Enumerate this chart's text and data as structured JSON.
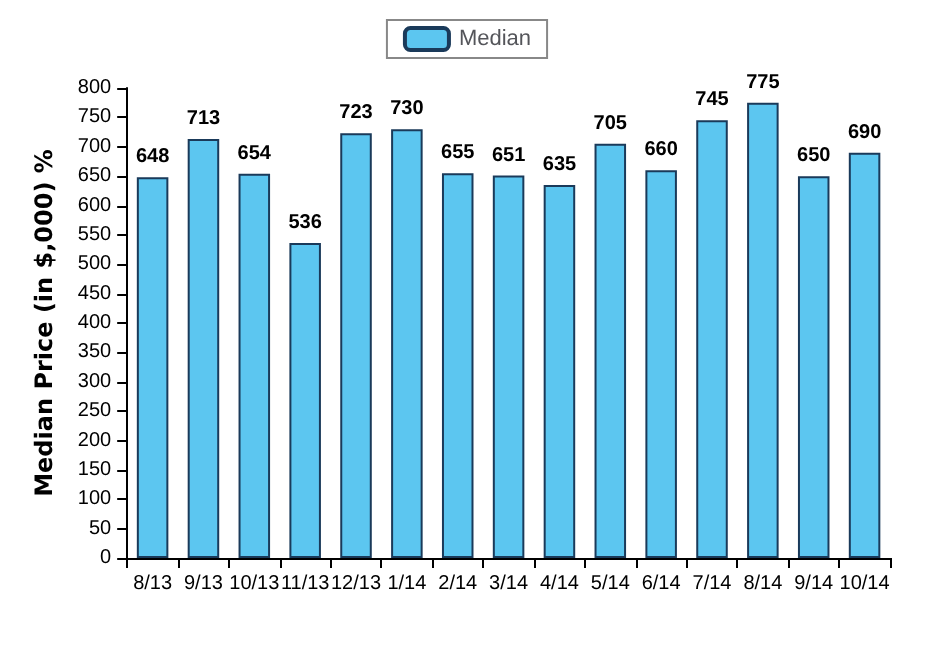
{
  "chart_data": {
    "type": "bar",
    "ylabel": "Median Price (in $,000) %",
    "categories": [
      "8/13",
      "9/13",
      "10/13",
      "11/13",
      "12/13",
      "1/14",
      "2/14",
      "3/14",
      "4/14",
      "5/14",
      "6/14",
      "7/14",
      "8/14",
      "9/14",
      "10/14"
    ],
    "series": [
      {
        "name": "Median",
        "color": "#5cc6f0",
        "values": [
          648,
          713,
          654,
          536,
          723,
          730,
          655,
          651,
          635,
          705,
          660,
          745,
          775,
          650,
          690
        ]
      }
    ],
    "ylim": [
      0,
      800
    ],
    "yticks": [
      0,
      50,
      100,
      150,
      200,
      250,
      300,
      350,
      400,
      450,
      500,
      550,
      600,
      650,
      700,
      750,
      800
    ],
    "data_labels": true,
    "legend": "top"
  }
}
